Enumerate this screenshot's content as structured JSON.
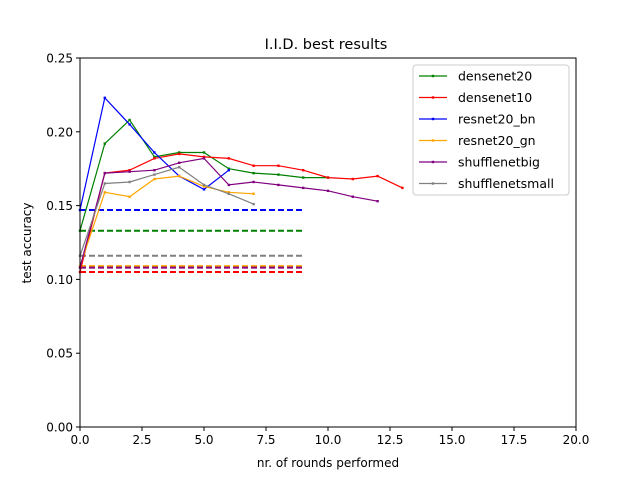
{
  "chart_data": {
    "type": "line",
    "title": "I.I.D. best results",
    "xlabel": "nr. of rounds performed",
    "ylabel": "test accuracy",
    "xlim": [
      0,
      20
    ],
    "ylim": [
      0,
      0.25
    ],
    "xticks": [
      0,
      2.5,
      5,
      7.5,
      10,
      12.5,
      15,
      17.5,
      20
    ],
    "xtick_labels": [
      "0.0",
      "2.5",
      "5.0",
      "7.5",
      "10.0",
      "12.5",
      "15.0",
      "17.5",
      "20.0"
    ],
    "yticks": [
      0,
      0.05,
      0.1,
      0.15,
      0.2,
      0.25
    ],
    "ytick_labels": [
      "0.00",
      "0.05",
      "0.10",
      "0.15",
      "0.20",
      "0.25"
    ],
    "grid": false,
    "legend_position": "top-right",
    "series": [
      {
        "name": "densenet20",
        "color": "#008000",
        "x": [
          0,
          1,
          2,
          3,
          4,
          5,
          6,
          7,
          8,
          9,
          10
        ],
        "values": [
          0.133,
          0.192,
          0.208,
          0.183,
          0.186,
          0.186,
          0.175,
          0.172,
          0.171,
          0.169,
          0.169
        ]
      },
      {
        "name": "densenet10",
        "color": "#ff0000",
        "x": [
          0,
          1,
          2,
          3,
          4,
          5,
          6,
          7,
          8,
          9,
          10,
          11,
          12,
          13
        ],
        "values": [
          0.105,
          0.172,
          0.174,
          0.182,
          0.185,
          0.183,
          0.182,
          0.177,
          0.177,
          0.174,
          0.169,
          0.168,
          0.17,
          0.162
        ]
      },
      {
        "name": "resnet20_bn",
        "color": "#0000ff",
        "x": [
          0,
          1,
          2,
          3,
          4,
          5,
          6
        ],
        "values": [
          0.147,
          0.223,
          0.205,
          0.186,
          0.17,
          0.161,
          0.174
        ]
      },
      {
        "name": "resnet20_gn",
        "color": "#ffa500",
        "x": [
          0,
          1,
          2,
          3,
          4,
          5,
          6,
          7
        ],
        "values": [
          0.109,
          0.159,
          0.156,
          0.168,
          0.17,
          0.163,
          0.159,
          0.158
        ]
      },
      {
        "name": "shufflenetbig",
        "color": "#800080",
        "x": [
          0,
          1,
          2,
          3,
          4,
          5,
          6,
          7,
          8,
          9,
          10,
          11,
          12
        ],
        "values": [
          0.108,
          0.172,
          0.173,
          0.174,
          0.179,
          0.182,
          0.164,
          0.166,
          0.164,
          0.162,
          0.16,
          0.156,
          0.153
        ]
      },
      {
        "name": "shufflenetsmall",
        "color": "#808080",
        "x": [
          0,
          1,
          2,
          3,
          4,
          5,
          6,
          7
        ],
        "values": [
          0.116,
          0.165,
          0.166,
          0.171,
          0.176,
          0.164,
          0.158,
          0.151
        ]
      }
    ],
    "baselines": [
      {
        "series": "resnet20_bn",
        "color": "#0000ff",
        "y": 0.147,
        "x_range": [
          0,
          9
        ]
      },
      {
        "series": "densenet20",
        "color": "#008000",
        "y": 0.133,
        "x_range": [
          0,
          9
        ]
      },
      {
        "series": "shufflenetsmall",
        "color": "#808080",
        "y": 0.116,
        "x_range": [
          0,
          9
        ]
      },
      {
        "series": "resnet20_gn",
        "color": "#ffa500",
        "y": 0.109,
        "x_range": [
          0,
          9
        ]
      },
      {
        "series": "shufflenetbig",
        "color": "#800080",
        "y": 0.108,
        "x_range": [
          0,
          9
        ]
      },
      {
        "series": "densenet10",
        "color": "#ff0000",
        "y": 0.105,
        "x_range": [
          0,
          9
        ]
      }
    ]
  }
}
